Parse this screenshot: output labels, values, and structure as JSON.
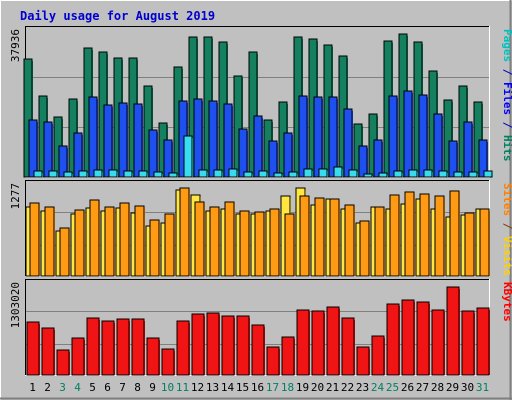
{
  "chart_data": {
    "type": "bar",
    "title": "Daily usage for August 2019",
    "categories": [
      "1",
      "2",
      "3",
      "4",
      "5",
      "6",
      "7",
      "8",
      "9",
      "10",
      "11",
      "12",
      "13",
      "14",
      "15",
      "16",
      "17",
      "18",
      "19",
      "20",
      "21",
      "22",
      "23",
      "24",
      "25",
      "26",
      "27",
      "28",
      "29",
      "30",
      "31"
    ],
    "weekend_days": [
      "3",
      "4",
      "10",
      "11",
      "17",
      "18",
      "24",
      "25",
      "31"
    ],
    "panels": [
      {
        "id": "hits",
        "axis_label": "37936",
        "ylim": [
          0,
          42000
        ],
        "right_labels": [
          {
            "text": "Pages",
            "color": "#00c0c0"
          },
          {
            "text": " / ",
            "color": "#0000c0"
          },
          {
            "text": "Files",
            "color": "#0000ff"
          },
          {
            "text": " / ",
            "color": "#0000c0"
          },
          {
            "text": "Hits",
            "color": "#008060"
          }
        ],
        "series": [
          {
            "name": "Hits",
            "color": "#158060",
            "values": [
              33500,
              23000,
              16900,
              22100,
              36700,
              35400,
              33900,
              33900,
              25900,
              15400,
              31300,
              39800,
              39600,
              38200,
              28700,
              35600,
              16100,
              21300,
              39700,
              39200,
              37500,
              34200,
              15000,
              17800,
              38500,
              40700,
              38200,
              30200,
              21900,
              25900,
              21300
            ]
          },
          {
            "name": "Files",
            "color": "#1e50f0",
            "values": [
              16100,
              15600,
              8900,
              12600,
              22600,
              20400,
              21000,
              20700,
              13400,
              10400,
              21500,
              22100,
              21500,
              20700,
              13600,
              17200,
              10100,
              12600,
              22900,
              22800,
              22600,
              19400,
              8900,
              10500,
              22900,
              24400,
              23400,
              17800,
              10200,
              15600,
              10400
            ]
          },
          {
            "name": "Pages",
            "color": "#38dcf0",
            "values": [
              1800,
              1700,
              1500,
              1600,
              1900,
              1900,
              1800,
              1800,
              1500,
              1100,
              11500,
              2100,
              2100,
              2200,
              1400,
              1700,
              1000,
              1500,
              2300,
              2400,
              2800,
              1900,
              900,
              1000,
              1800,
              1900,
              2000,
              1700,
              1300,
              1500,
              1600
            ]
          }
        ]
      },
      {
        "id": "visits",
        "axis_label": "1277",
        "ylim": [
          0,
          1380
        ],
        "right_labels": [
          {
            "text": "Sites",
            "color": "#ff8000"
          },
          {
            "text": " / ",
            "color": "#804000"
          },
          {
            "text": "Visits",
            "color": "#ffd000"
          }
        ],
        "series": [
          {
            "name": "Visits",
            "color": "#ffe640",
            "values": [
              1020,
              960,
              670,
              920,
              1010,
              960,
              1010,
              930,
              740,
              790,
              1270,
              1200,
              970,
              1000,
              920,
              920,
              960,
              1180,
              1310,
              1060,
              1140,
              990,
              780,
              1030,
              1000,
              1070,
              1140,
              1000,
              880,
              910,
              1000
            ]
          },
          {
            "name": "Sites",
            "color": "#ff9a14",
            "values": [
              1090,
              1030,
              710,
              980,
              1130,
              1020,
              1090,
              1040,
              830,
              920,
              1300,
              1100,
              1020,
              1100,
              970,
              950,
              990,
              920,
              1180,
              1150,
              1140,
              1060,
              820,
              1030,
              1200,
              1250,
              1220,
              1180,
              1260,
              930,
              1000
            ]
          }
        ]
      },
      {
        "id": "kbytes",
        "axis_label": "1303020",
        "ylim": [
          0,
          1380000
        ],
        "right_labels": [
          {
            "text": "KBytes",
            "color": "#ff0000"
          }
        ],
        "series": [
          {
            "name": "KBytes",
            "color": "#f01414",
            "values": [
              780000,
              690000,
              370000,
              550000,
              840000,
              800000,
              830000,
              830000,
              550000,
              380000,
              800000,
              900000,
              920000,
              870000,
              880000,
              740000,
              420000,
              560000,
              960000,
              950000,
              1010000,
              850000,
              410000,
              580000,
              1050000,
              1110000,
              1090000,
              960000,
              1300000,
              950000,
              990000
            ]
          }
        ]
      }
    ]
  }
}
